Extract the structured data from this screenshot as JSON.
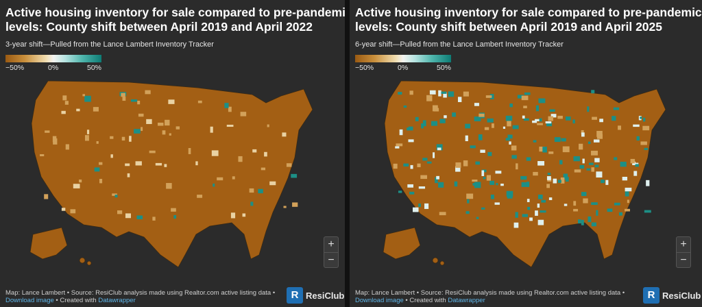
{
  "panels": [
    {
      "title_line1": "Active housing inventory for sale compared to pre-pandemic",
      "title_line2": "levels: County shift between April 2019 and April 2022",
      "subtitle": "3-year shift—Pulled from the Lance Lambert Inventory Tracker",
      "legend": {
        "min": "−50%",
        "mid": "0%",
        "max": "50%"
      },
      "footer_line1": "Map: Lance Lambert • Source: ResiClub analysis made using Realtor.com active listing data •",
      "download_link": "Download image",
      "created_with": " • Created with ",
      "datawrapper": "Datawrapper",
      "map": {
        "fill": "#a35f14",
        "speckle": "#d2a15a",
        "teal": "#1c8f86",
        "light": "#e9d2a3"
      }
    },
    {
      "title_line1": "Active housing inventory for sale compared to pre-pandemic",
      "title_line2": "levels: County shift between April 2019 and April 2025",
      "subtitle": "6-year shift—Pulled from the Lance Lambert Inventory Tracker",
      "legend": {
        "min": "−50%",
        "mid": "0%",
        "max": "50%"
      },
      "footer_line1": "Map: Lance Lambert • Source: ResiClub analysis made using Realtor.com active listing data •",
      "download_link": "Download image",
      "created_with": " • Created with ",
      "datawrapper": "Datawrapper",
      "map": {
        "fill": "#a35f14",
        "speckle": "#d2a15a",
        "teal": "#1c8f86",
        "light": "#dff0ee"
      }
    }
  ],
  "zoom": {
    "in": "+",
    "out": "−"
  },
  "brand": {
    "mark": "R",
    "name": "ResiClub"
  }
}
